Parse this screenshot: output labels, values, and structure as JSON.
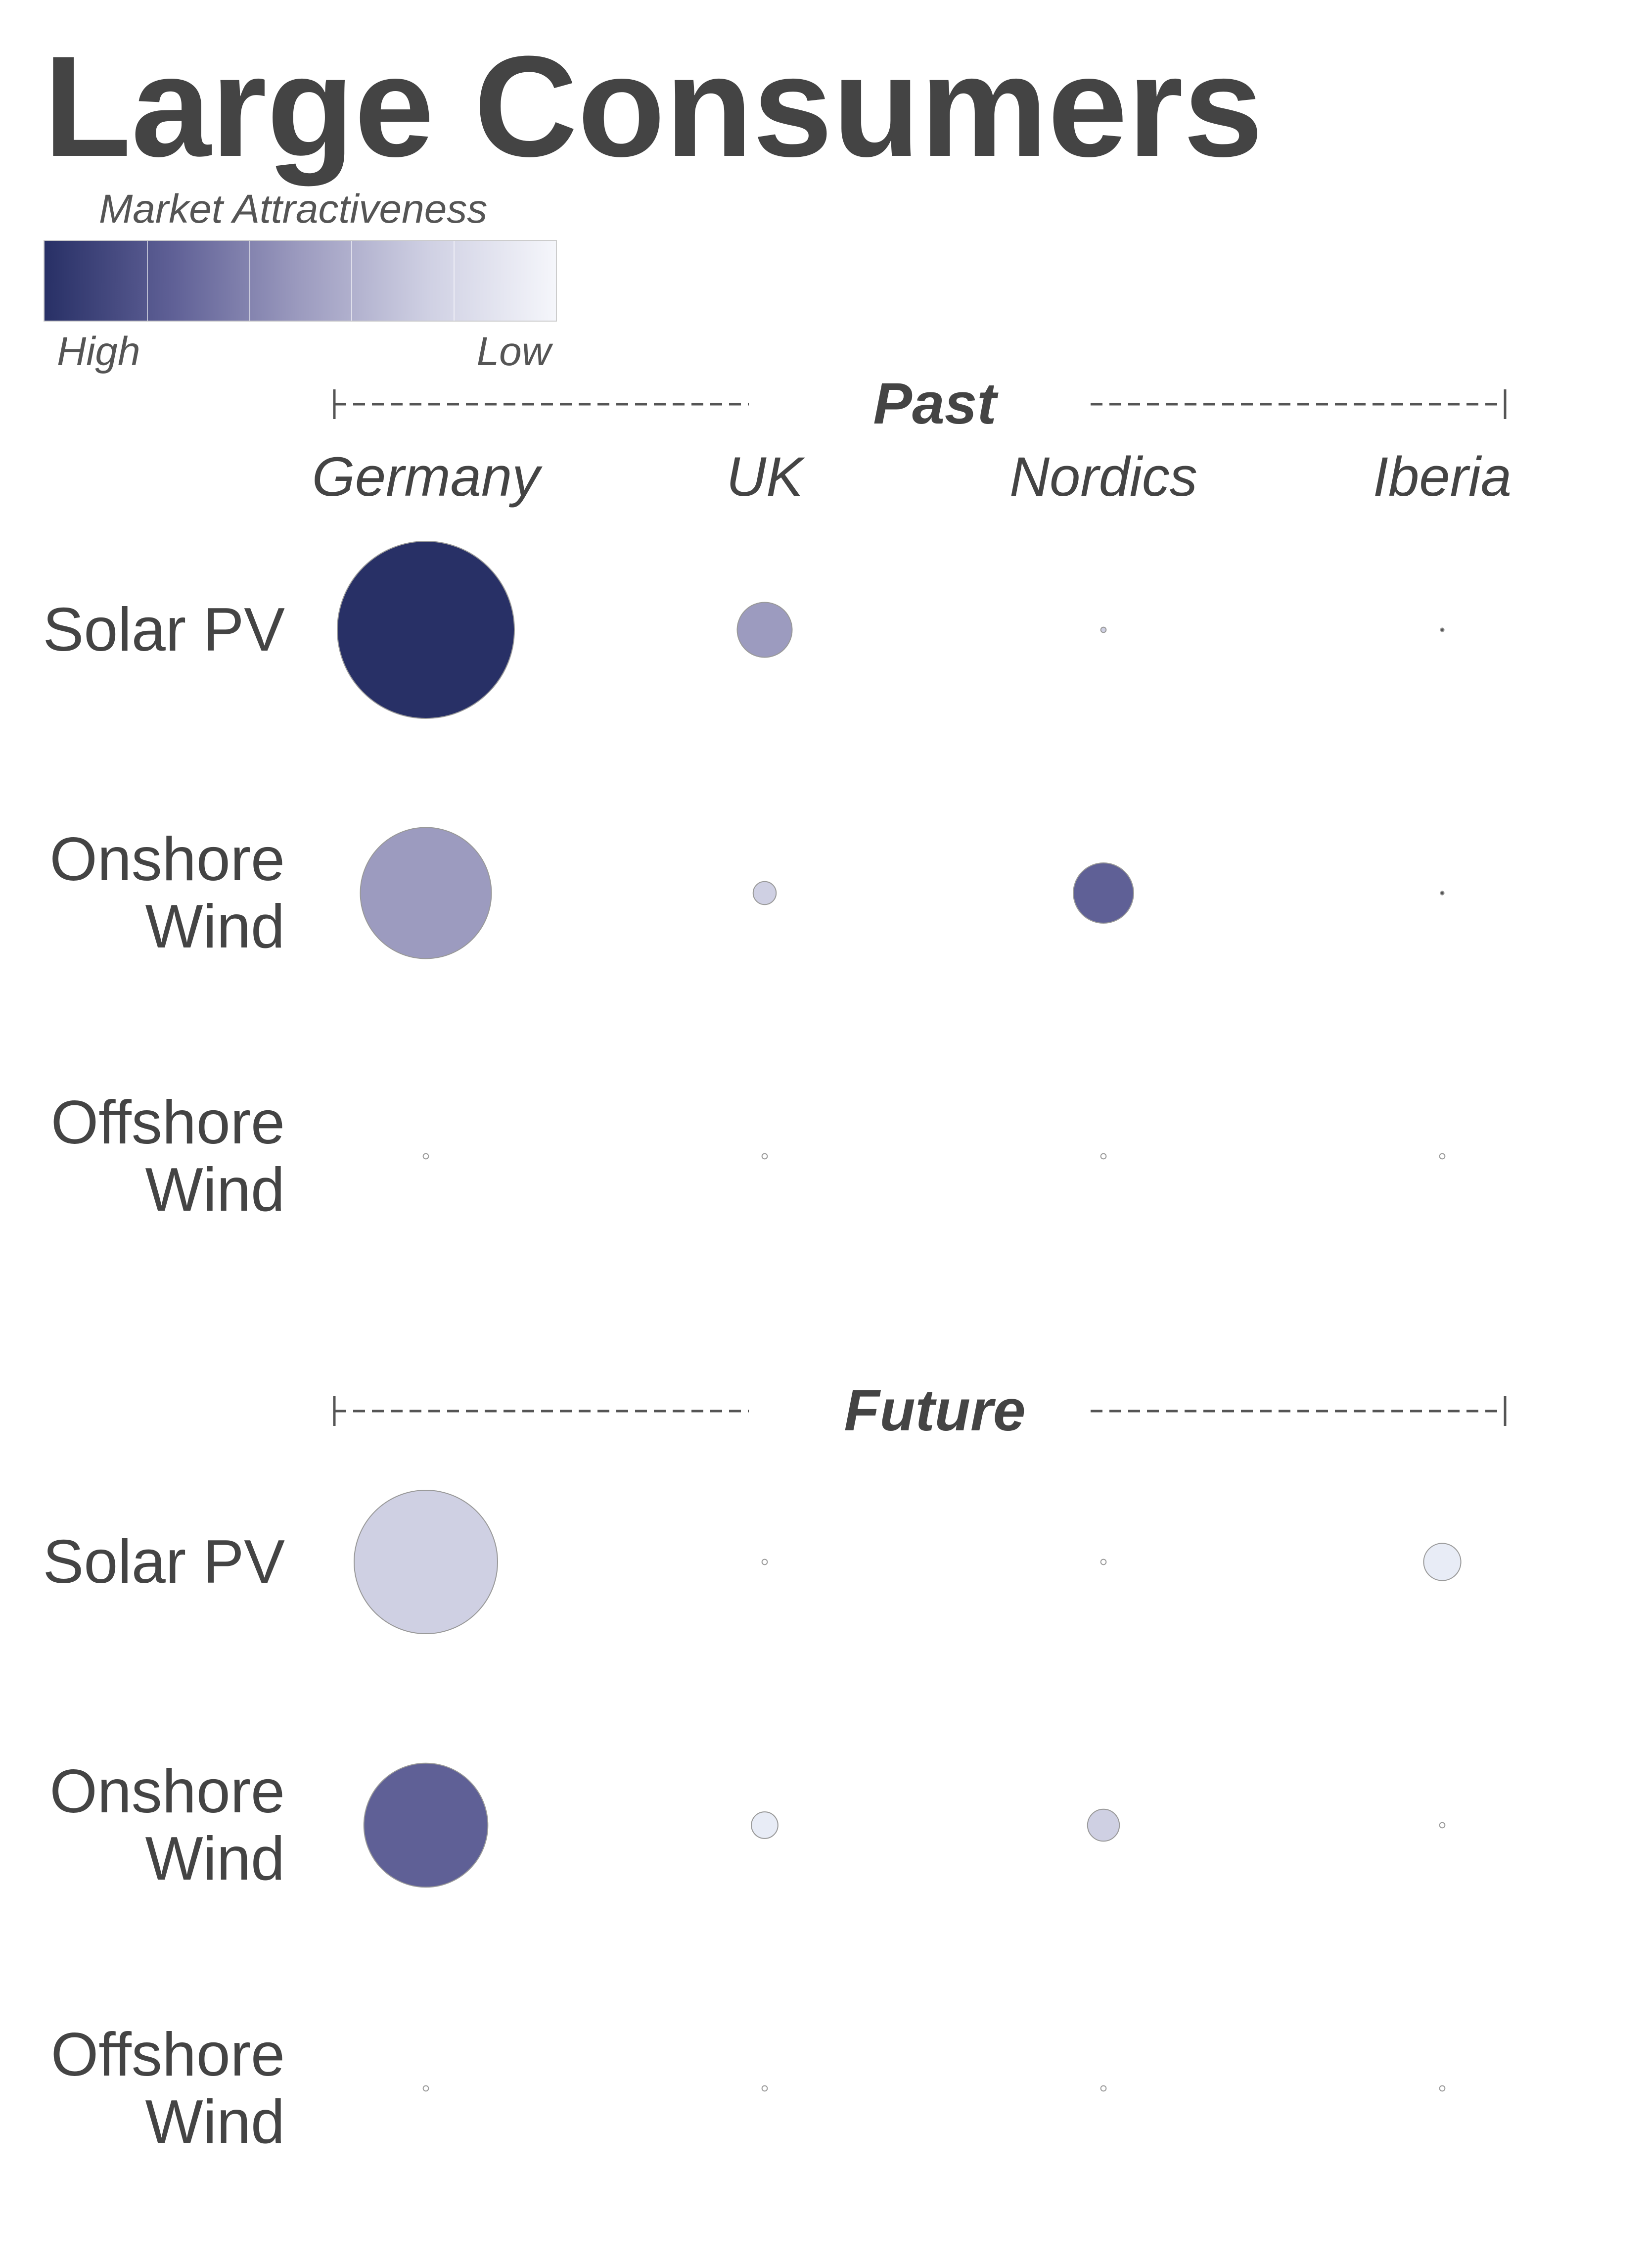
{
  "chart_data": {
    "type": "bubble",
    "title": "Large Consumers",
    "legend": {
      "title": "Market Attractiveness",
      "high": "High",
      "low": "Low",
      "colors": [
        "#283066",
        "#5f6096",
        "#9c9bbf",
        "#cfd0e3",
        "#f5f6fb"
      ]
    },
    "categories": [
      "Germany",
      "UK",
      "Nordics",
      "Iberia"
    ],
    "panels": [
      {
        "title": "Past",
        "series": [
          {
            "name": "Solar PV",
            "values": [
              100,
              31,
              3,
              2
            ],
            "colors": [
              "#283066",
              "#9c9bbf",
              "#cfd0e3",
              "#555555"
            ]
          },
          {
            "name": "Onshore Wind",
            "values": [
              74,
              13,
              34,
              2
            ],
            "colors": [
              "#9c9bbf",
              "#cfd0e3",
              "#5f6096",
              "#555555"
            ]
          },
          {
            "name": "Offshore Wind",
            "values": [
              3,
              3,
              3,
              3
            ],
            "colors": [
              "#ffffff",
              "#ffffff",
              "#ffffff",
              "#ffffff"
            ]
          }
        ]
      },
      {
        "title": "Future",
        "series": [
          {
            "name": "Solar PV",
            "values": [
              81,
              3,
              3,
              21
            ],
            "colors": [
              "#cfd0e3",
              "#ffffff",
              "#ffffff",
              "#e8ecf6"
            ]
          },
          {
            "name": "Onshore Wind",
            "values": [
              70,
              15,
              18,
              3
            ],
            "colors": [
              "#5f6096",
              "#e8ecf6",
              "#cfd0e3",
              "#ffffff"
            ]
          },
          {
            "name": "Offshore Wind",
            "values": [
              3,
              3,
              3,
              3
            ],
            "colors": [
              "#ffffff",
              "#ffffff",
              "#ffffff",
              "#ffffff"
            ]
          }
        ]
      }
    ]
  }
}
